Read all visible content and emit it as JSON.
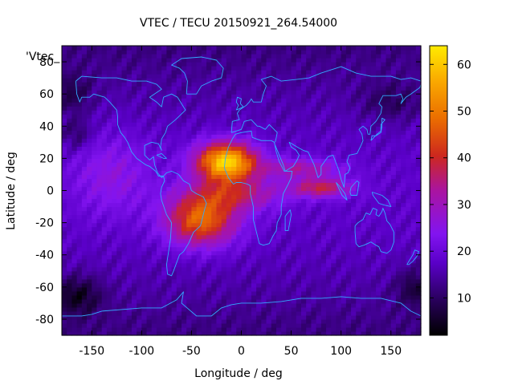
{
  "chart_data": {
    "type": "heatmap",
    "title": "VTEC / TECU 20150921_264.54000",
    "xlabel": "Longitude / deg",
    "ylabel": "Latitude / deg",
    "key_label": "'Vtec_",
    "xlim": [
      -180,
      180
    ],
    "ylim": [
      -90,
      90
    ],
    "x_ticks": [
      -150,
      -100,
      -50,
      0,
      50,
      100,
      150
    ],
    "y_ticks": [
      -80,
      -60,
      -40,
      -20,
      0,
      20,
      40,
      60,
      80
    ],
    "colorbar": {
      "range": [
        2,
        64
      ],
      "ticks": [
        10,
        20,
        30,
        40,
        50,
        60
      ],
      "palette": "black-purple-red-orange-yellow"
    },
    "grid": false,
    "overlay": "continent coastlines",
    "grid_resolution_deg": {
      "lon": 5,
      "lat": 2.5
    },
    "features": [
      {
        "description": "equatorial anomaly peak",
        "lon": -15,
        "lat": 18,
        "vtec": 60
      },
      {
        "description": "southern crest",
        "lon": -40,
        "lat": -15,
        "vtec": 47
      },
      {
        "description": "eastern extension",
        "lon": 90,
        "lat": 0,
        "vtec": 32
      },
      {
        "description": "polar minimum",
        "lon": -160,
        "lat": -65,
        "vtec": 3
      }
    ]
  },
  "colors": {
    "coastline": "#33aaff",
    "axis": "#000000",
    "background": "#ffffff"
  }
}
